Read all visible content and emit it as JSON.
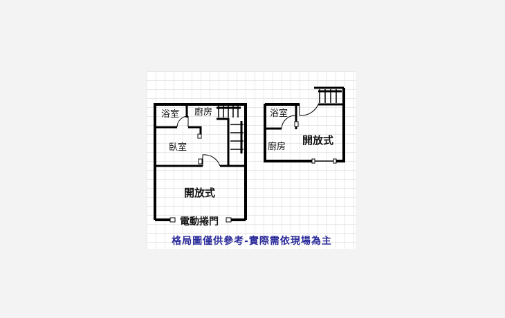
{
  "floor_1": {
    "bathroom_label": "浴室",
    "kitchen_label": "廚房",
    "bedroom_label": "臥室",
    "open_space_label": "開放式",
    "rolling_door_label": "電動捲門"
  },
  "floor_2": {
    "bathroom_label": "浴室",
    "kitchen_label": "廚房",
    "open_space_label": "開放式"
  },
  "caption": "格局圖僅供參考-實際需依現場為主",
  "colors": {
    "background": "#f3f3f3",
    "grid_paper": "#ffffff",
    "grid_line": "#d3d3d3",
    "wall": "#000000",
    "caption": "#2a2a9a"
  }
}
